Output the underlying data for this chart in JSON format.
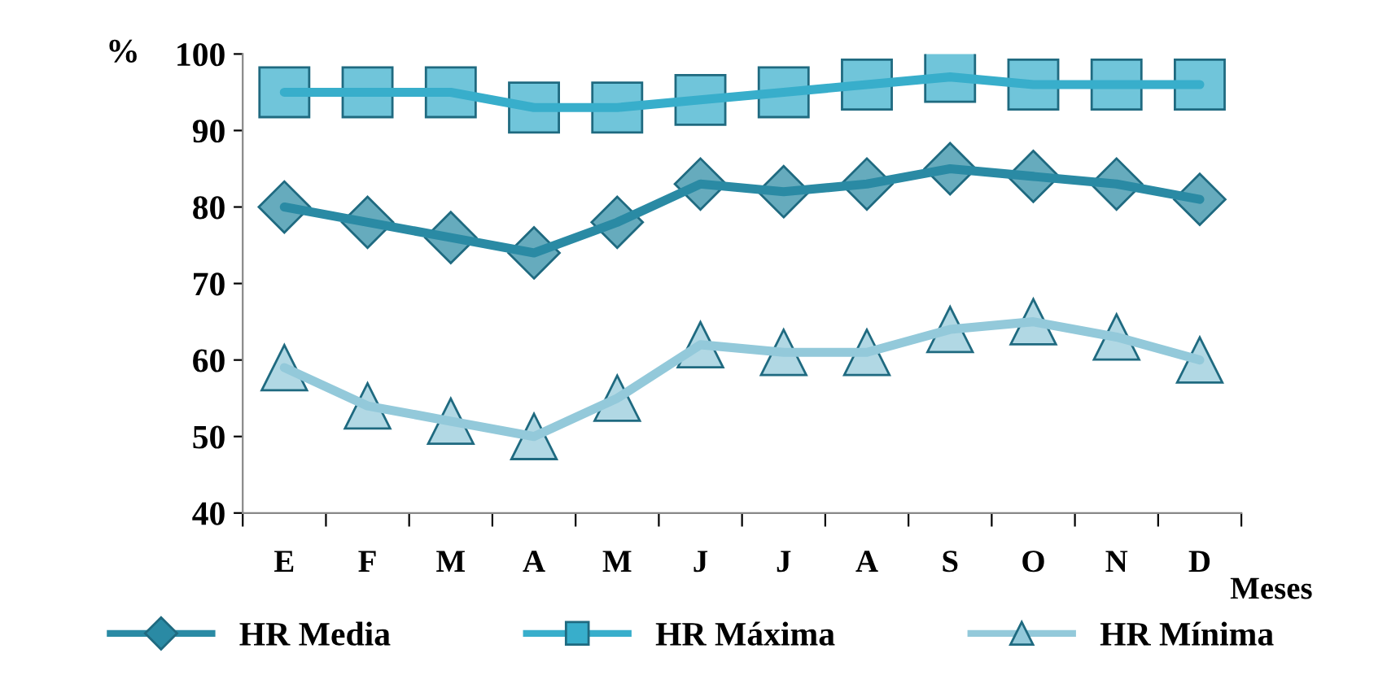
{
  "chart_data": {
    "type": "line",
    "ylabel": "%",
    "xlabel": "Meses",
    "categories": [
      "E",
      "F",
      "M",
      "A",
      "M",
      "J",
      "J",
      "A",
      "S",
      "O",
      "N",
      "D"
    ],
    "series": [
      {
        "name": "HR Media",
        "color": "#2a8aa4",
        "marker": "diamond",
        "values": [
          80,
          78,
          76,
          74,
          78,
          83,
          82,
          83,
          85,
          84,
          83,
          81
        ]
      },
      {
        "name": "HR Máxima",
        "color": "#38aecb",
        "marker": "square",
        "values": [
          95,
          95,
          95,
          93,
          93,
          94,
          95,
          96,
          97,
          96,
          96,
          96
        ]
      },
      {
        "name": "HR Mínima",
        "color": "#93c9da",
        "marker": "triangle",
        "values": [
          59,
          54,
          52,
          50,
          55,
          62,
          61,
          61,
          64,
          65,
          63,
          60
        ]
      }
    ],
    "ylim": [
      40,
      100
    ],
    "yticks": [
      40,
      50,
      60,
      70,
      80,
      90,
      100
    ],
    "grid": false,
    "legend": "bottom"
  }
}
